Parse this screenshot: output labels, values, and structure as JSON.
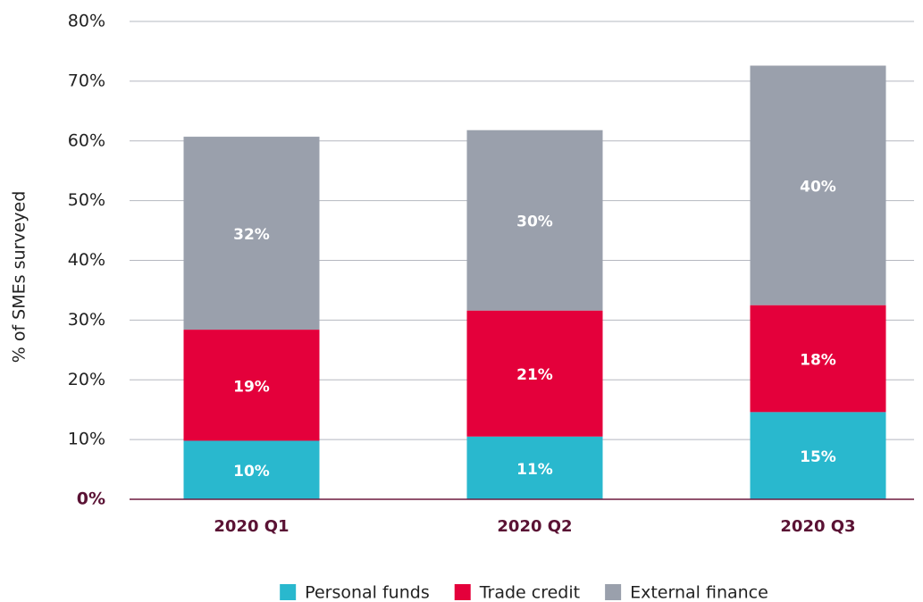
{
  "chart_data": {
    "type": "stacked_bar",
    "ylabel": "% of SMEs surveyed",
    "categories": [
      "2020 Q1",
      "2020 Q2",
      "2020 Q3"
    ],
    "series": [
      {
        "name": "Personal funds",
        "color": "#29b8ce",
        "values": [
          9.8,
          10.5,
          14.6
        ],
        "value_labels": [
          "10%",
          "11%",
          "15%"
        ]
      },
      {
        "name": "Trade credit",
        "color": "#e4003b",
        "values": [
          18.6,
          21.1,
          17.9
        ],
        "value_labels": [
          "19%",
          "21%",
          "18%"
        ]
      },
      {
        "name": "External finance",
        "color": "#9aa0ac",
        "values": [
          32.3,
          30.2,
          40.1
        ],
        "value_labels": [
          "32%",
          "30%",
          "40%"
        ]
      }
    ],
    "ylim": [
      0,
      80
    ],
    "yticks": [
      {
        "value": 0,
        "label": "0%"
      },
      {
        "value": 10,
        "label": "10%"
      },
      {
        "value": 20,
        "label": "20%"
      },
      {
        "value": 30,
        "label": "30%"
      },
      {
        "value": 40,
        "label": "40%"
      },
      {
        "value": 50,
        "label": "50%"
      },
      {
        "value": 60,
        "label": "60%"
      },
      {
        "value": 70,
        "label": "70%"
      },
      {
        "value": 80,
        "label": "80%"
      }
    ],
    "grid": true,
    "legend": "bottom"
  }
}
